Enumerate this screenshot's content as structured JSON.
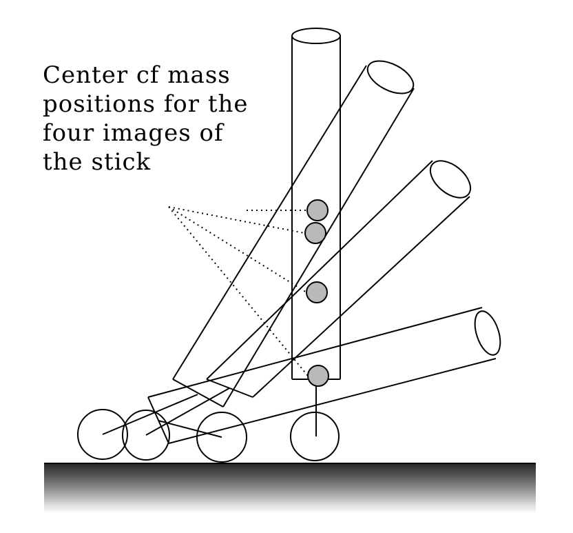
{
  "caption": {
    "lines": [
      "Center cf mass",
      "positions for the",
      "four images of",
      "the stick"
    ]
  },
  "colors": {
    "ink": "#000000",
    "com_fill": "#b9b9b9",
    "floor_top": "#2a2a2a",
    "floor_bottom": "#ffffff"
  }
}
